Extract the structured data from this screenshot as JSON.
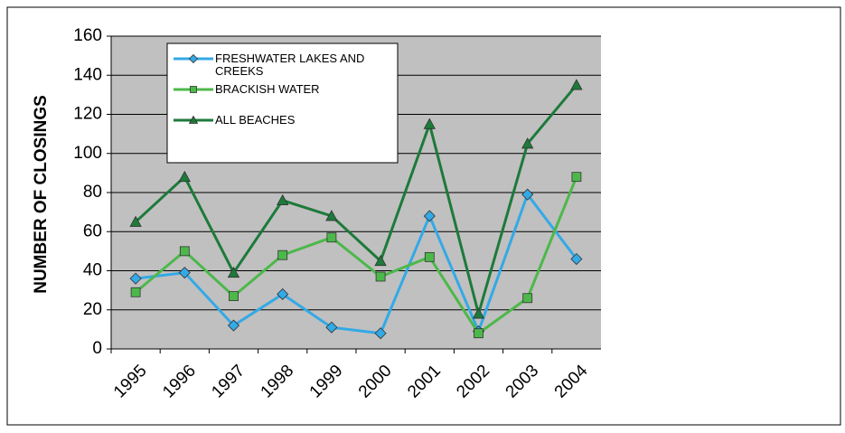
{
  "chart_data": {
    "type": "line",
    "y_label": "NUMBER OF CLOSINGS",
    "categories": [
      "1995",
      "1996",
      "1997",
      "1998",
      "1999",
      "2000",
      "2001",
      "2002",
      "2003",
      "2004"
    ],
    "series": [
      {
        "name": "FRESHWATER LAKES AND CREEKS",
        "color": "#33a9e6",
        "marker": "diamond",
        "values": [
          36,
          39,
          12,
          28,
          11,
          8,
          68,
          9,
          79,
          46
        ]
      },
      {
        "name": "BRACKISH WATER",
        "color": "#4cb84a",
        "marker": "square",
        "values": [
          29,
          50,
          27,
          48,
          57,
          37,
          47,
          8,
          26,
          88
        ]
      },
      {
        "name": "ALL BEACHES",
        "color": "#1d7a3a",
        "marker": "triangle",
        "values": [
          65,
          88,
          39,
          76,
          68,
          45,
          115,
          18,
          105,
          135
        ]
      }
    ],
    "ylim": [
      0,
      160
    ],
    "yticks": [
      0,
      20,
      40,
      60,
      80,
      100,
      120,
      140,
      160
    ],
    "grid": true
  }
}
